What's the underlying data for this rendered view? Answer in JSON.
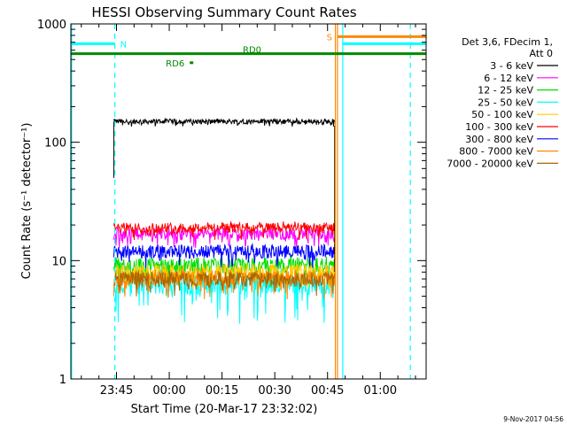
{
  "chart_data": {
    "type": "line",
    "title": "HESSI Observing Summary Count Rates",
    "xlabel": "Start Time (20-Mar-17 23:32:02)",
    "ylabel": "Count Rate (s⁻¹ detector⁻¹)",
    "y_scale": "log",
    "ylim": [
      1,
      1000
    ],
    "x_unit": "minutes after 23:32:02",
    "xlim": [
      0,
      101
    ],
    "x_ticks": [
      {
        "value": 12.97,
        "label": "23:45"
      },
      {
        "value": 27.97,
        "label": "00:00"
      },
      {
        "value": 42.97,
        "label": "00:15"
      },
      {
        "value": 57.97,
        "label": "00:30"
      },
      {
        "value": 72.97,
        "label": "00:45"
      },
      {
        "value": 87.97,
        "label": "01:00"
      }
    ],
    "y_ticks": [
      {
        "value": 1,
        "label": "1"
      },
      {
        "value": 10,
        "label": "10"
      },
      {
        "value": 100,
        "label": "100"
      },
      {
        "value": 1000,
        "label": "1000"
      }
    ],
    "grid": false,
    "legend_position": "right",
    "legend_header": [
      "Det 3,6, FDecim 1,",
      "Att 0"
    ],
    "data_span": [
      12.2,
      75.0
    ],
    "series": [
      {
        "name": "3 - 6 keV",
        "color": "#000000",
        "level": 150,
        "scatter": 0.05,
        "spikes": 0.1
      },
      {
        "name": "6 - 12 keV",
        "color": "#ff00ff",
        "level": 17,
        "scatter": 0.12,
        "spikes": 0.25
      },
      {
        "name": "12 - 25 keV",
        "color": "#00dd00",
        "level": 9,
        "scatter": 0.18,
        "spikes": 0.35
      },
      {
        "name": "25 - 50 keV",
        "color": "#00ffff",
        "level": 6.5,
        "scatter": 0.2,
        "spikes": 0.55
      },
      {
        "name": "50 - 100 keV",
        "color": "#ffcc00",
        "level": 8,
        "scatter": 0.16,
        "spikes": 0.3
      },
      {
        "name": "100 - 300 keV",
        "color": "#ff0000",
        "level": 19,
        "scatter": 0.1,
        "spikes": 0.22
      },
      {
        "name": "300 - 800 keV",
        "color": "#0000ff",
        "level": 12,
        "scatter": 0.13,
        "spikes": 0.28
      },
      {
        "name": "800 - 7000 keV",
        "color": "#ff8800",
        "level": 7.2,
        "scatter": 0.15,
        "spikes": 0.35
      },
      {
        "name": "7000 - 20000 keV",
        "color": "#aa6600",
        "level": 7,
        "scatter": 0.15,
        "spikes": 0.3
      }
    ],
    "flags": [
      {
        "label": "N",
        "color": "#00ffff",
        "x_start": 0,
        "x_end": 12.5,
        "y": 680,
        "label_side": "right"
      },
      {
        "label": "RD0",
        "color": "#008800",
        "x_start": 0,
        "x_end": 101,
        "y": 560,
        "label_side": "above"
      },
      {
        "label": "RD6",
        "color": "#008800",
        "x_start": 33.8,
        "x_end": 34.8,
        "y": 470,
        "label_side": "left"
      },
      {
        "label": "S",
        "color": "#ff8800",
        "x_start": 75.8,
        "x_end": 101,
        "y": 780,
        "label_side": "left"
      },
      {
        "label": "",
        "color": "#00ffff",
        "x_start": 77.3,
        "x_end": 101,
        "y": 680,
        "label_side": "none"
      }
    ],
    "vertical_lines": [
      {
        "x": 0.2,
        "color": "#00ffff",
        "style": "solid"
      },
      {
        "x": 12.5,
        "color": "#00ffff",
        "style": "dashed"
      },
      {
        "x": 75.2,
        "color": "#ff8800",
        "style": "solid"
      },
      {
        "x": 75.8,
        "color": "#ff8800",
        "style": "solid"
      },
      {
        "x": 77.3,
        "color": "#00ffff",
        "style": "solid"
      },
      {
        "x": 96.5,
        "color": "#00ffff",
        "style": "dashed"
      }
    ]
  },
  "footer": {
    "timestamp": "9-Nov-2017 04:56"
  }
}
